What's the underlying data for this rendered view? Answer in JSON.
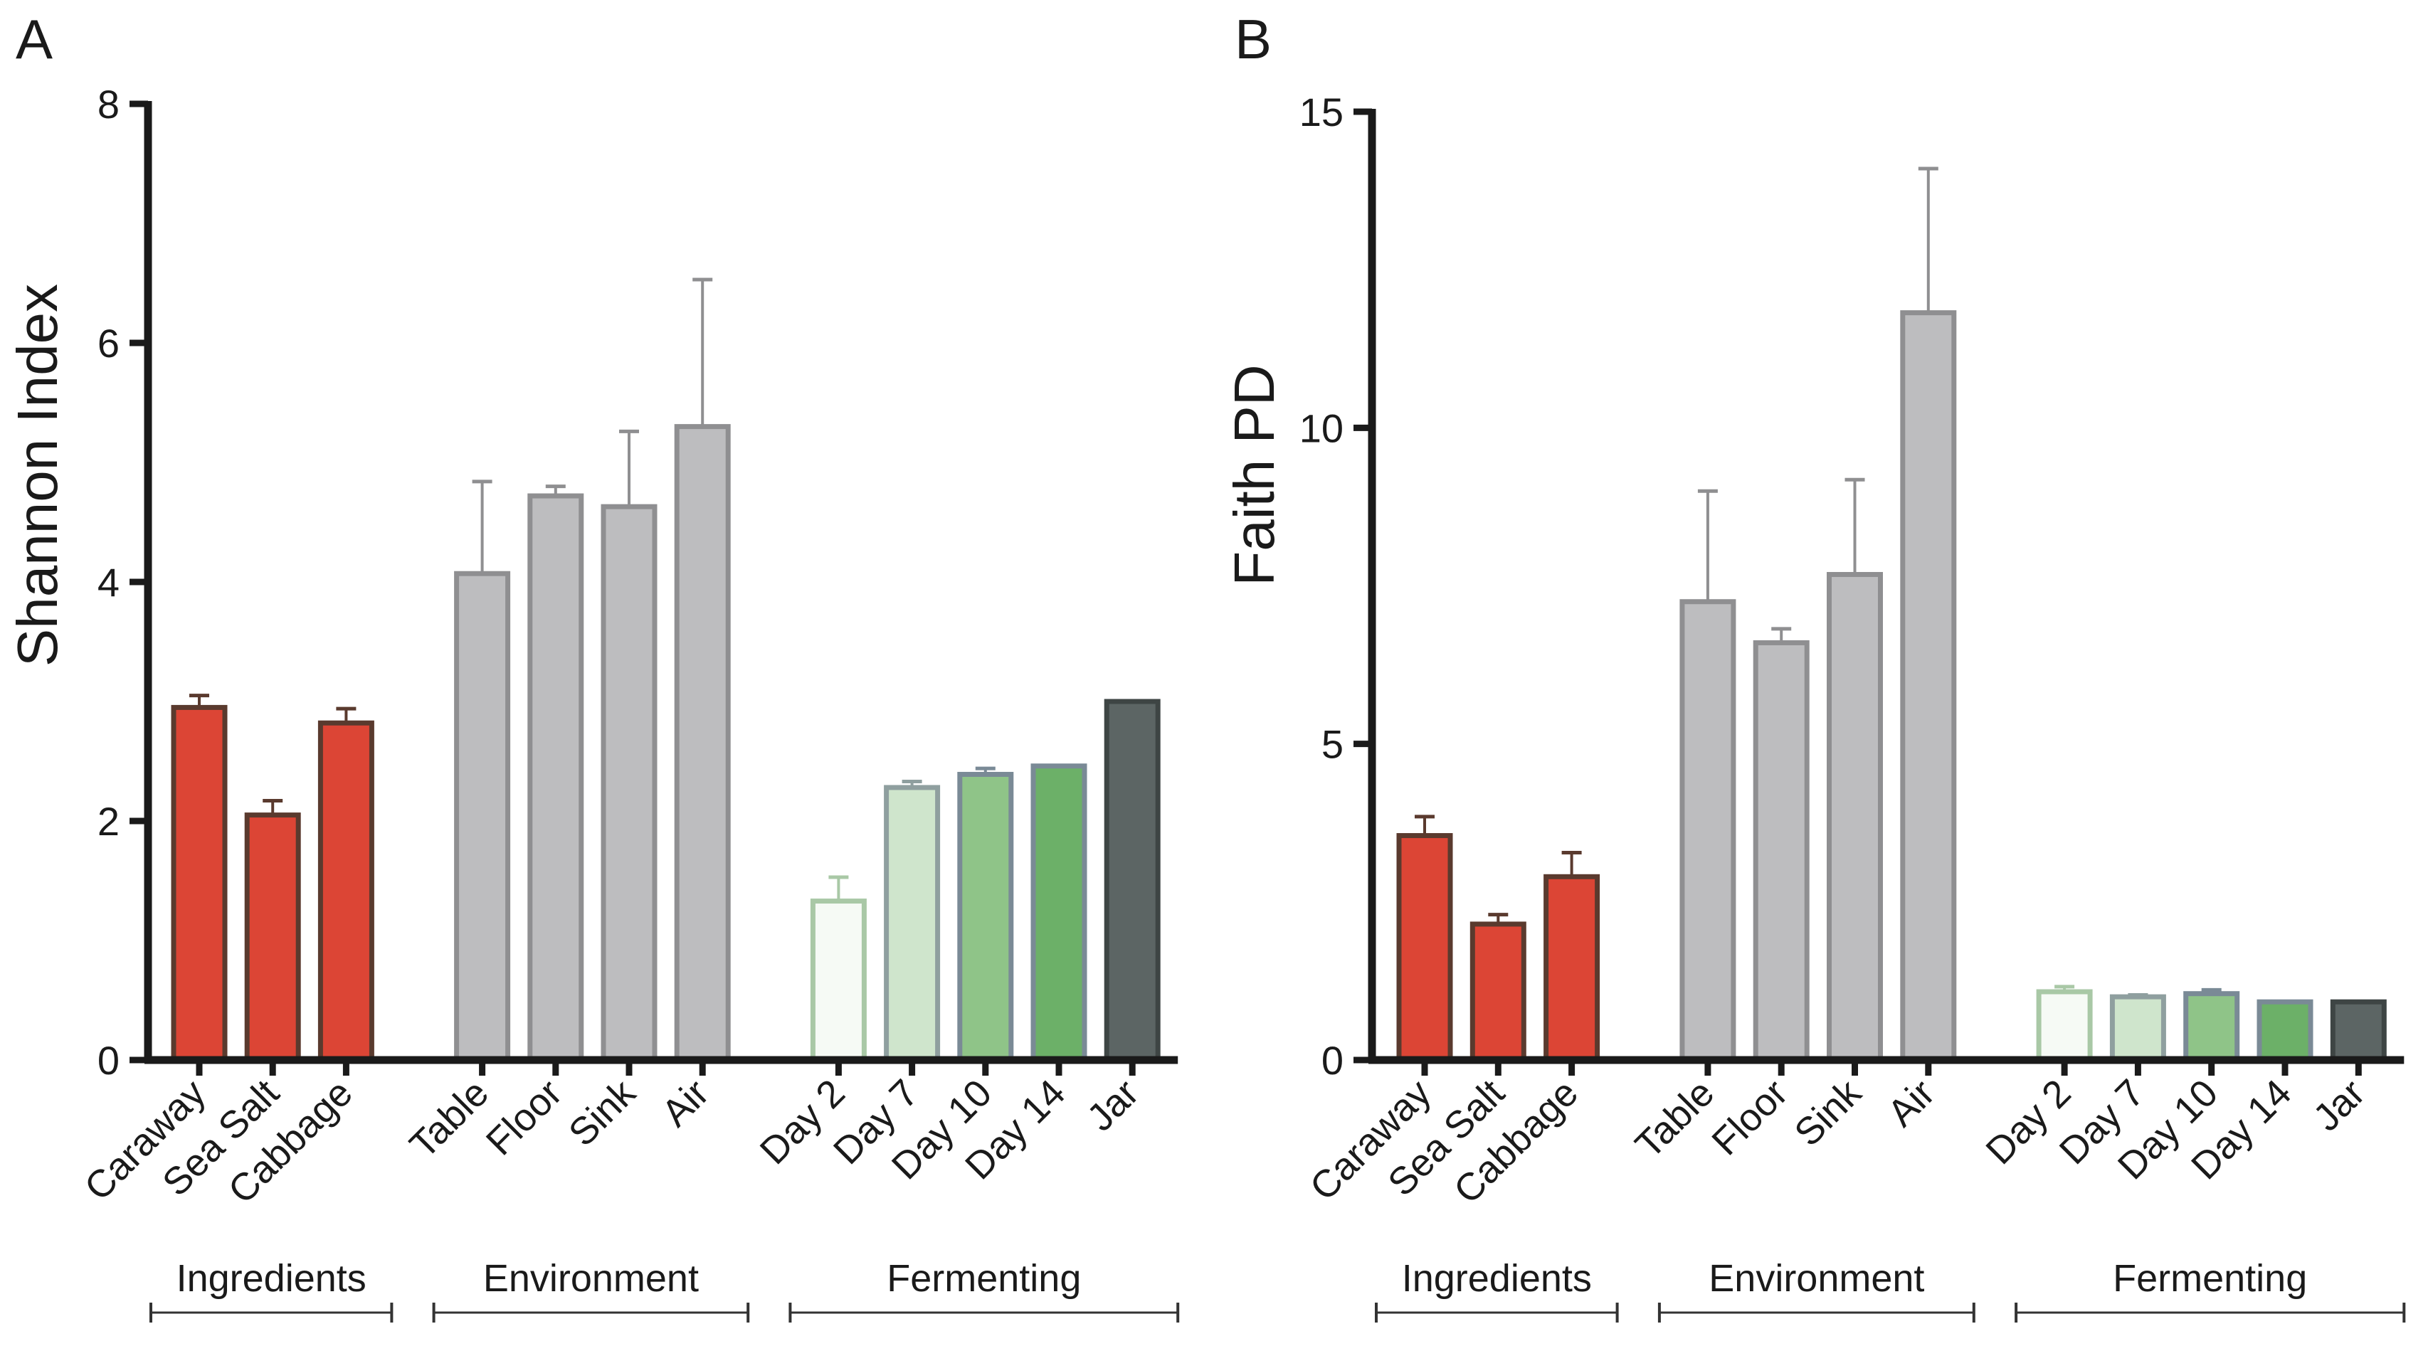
{
  "panels": [
    {
      "letter": "A",
      "ylabel": "Shannon Index",
      "yticks": [
        "0",
        "2",
        "4",
        "6",
        "8"
      ]
    },
    {
      "letter": "B",
      "ylabel": "Faith PD",
      "yticks": [
        "0",
        "5",
        "10",
        "15"
      ]
    }
  ],
  "groups": [
    {
      "name": "Ingredients",
      "categories": [
        "Caraway",
        "Sea Salt",
        "Cabbage"
      ]
    },
    {
      "name": "Environment",
      "categories": [
        "Table",
        "Floor",
        "Sink",
        "Air"
      ]
    },
    {
      "name": "Fermenting",
      "categories": [
        "Day 2",
        "Day 7",
        "Day 10",
        "Day 14",
        "Jar"
      ]
    }
  ],
  "colors": {
    "Caraway": "#dc4535",
    "Sea Salt": "#dc4535",
    "Cabbage": "#dc4535",
    "Table": "#bdbdbf",
    "Floor": "#bdbdbf",
    "Sink": "#bdbdbf",
    "Air": "#bdbdbf",
    "Day 2": "#f6faf5",
    "Day 7": "#cfe5cc",
    "Day 10": "#8fc488",
    "Day 14": "#6cb068",
    "Jar": "#5c6564"
  },
  "edge_colors": {
    "Caraway": "#5a3a2e",
    "Sea Salt": "#5a3a2e",
    "Cabbage": "#5a3a2e",
    "Table": "#8f8f91",
    "Floor": "#8f8f91",
    "Sink": "#8f8f91",
    "Air": "#8f8f91",
    "Day 2": "#a9c8a6",
    "Day 7": "#8f9f9f",
    "Day 10": "#7a8a96",
    "Day 14": "#7a8a96",
    "Jar": "#3e4544"
  },
  "chart_data": [
    {
      "type": "bar",
      "title": "A",
      "xlabel": "",
      "ylabel": "Shannon Index",
      "ylim": [
        0,
        8
      ],
      "categories": [
        "Caraway",
        "Sea Salt",
        "Cabbage",
        "Table",
        "Floor",
        "Sink",
        "Air",
        "Day 2",
        "Day 7",
        "Day 10",
        "Day 14",
        "Jar"
      ],
      "values": [
        2.95,
        2.05,
        2.82,
        4.07,
        4.72,
        4.63,
        5.3,
        1.33,
        2.28,
        2.39,
        2.46,
        3.0
      ],
      "errors": [
        0.1,
        0.12,
        0.12,
        0.77,
        0.08,
        0.63,
        1.23,
        0.2,
        0.05,
        0.05,
        0.0,
        0.0
      ]
    },
    {
      "type": "bar",
      "title": "B",
      "xlabel": "",
      "ylabel": "Faith PD",
      "ylim": [
        0,
        15
      ],
      "categories": [
        "Caraway",
        "Sea Salt",
        "Cabbage",
        "Table",
        "Floor",
        "Sink",
        "Air",
        "Day 2",
        "Day 7",
        "Day 10",
        "Day 14",
        "Jar"
      ],
      "values": [
        3.55,
        2.15,
        2.9,
        7.25,
        6.6,
        7.68,
        11.82,
        1.08,
        1.0,
        1.05,
        0.92,
        0.92
      ],
      "errors": [
        0.3,
        0.15,
        0.38,
        1.75,
        0.22,
        1.5,
        2.28,
        0.08,
        0.03,
        0.06,
        0.0,
        0.0
      ]
    }
  ]
}
